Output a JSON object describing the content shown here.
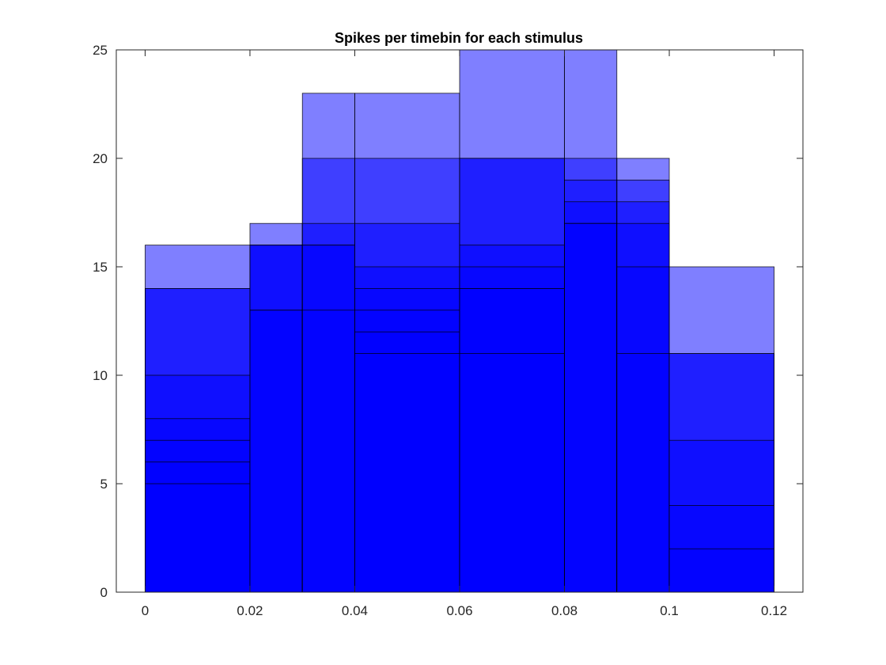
{
  "chart_data": {
    "type": "bar",
    "subtype": "overlaid-histogram",
    "title": "Spikes per timebin for each stimulus",
    "xlabel": "",
    "ylabel": "",
    "xlim": [
      -0.0055,
      0.1255
    ],
    "ylim": [
      0,
      25
    ],
    "x_ticks": [
      0,
      0.02,
      0.04,
      0.06,
      0.08,
      0.1,
      0.12
    ],
    "x_tick_labels": [
      "0",
      "0.02",
      "0.04",
      "0.06",
      "0.08",
      "0.1",
      "0.12"
    ],
    "y_ticks": [
      0,
      5,
      10,
      15,
      20,
      25
    ],
    "y_tick_labels": [
      "0",
      "5",
      "10",
      "15",
      "20",
      "25"
    ],
    "grid": false,
    "bar_color": "#0000ff",
    "bar_alpha": 0.5,
    "edge_color": "#000000",
    "bins": [
      {
        "x0": 0.0,
        "x1": 0.02,
        "values": [
          16,
          14,
          14,
          10,
          8,
          7,
          6,
          5
        ]
      },
      {
        "x0": 0.02,
        "x1": 0.03,
        "values": [
          17,
          16,
          16,
          16,
          13,
          13
        ]
      },
      {
        "x0": 0.03,
        "x1": 0.04,
        "values": [
          23,
          20,
          17,
          16,
          16,
          13
        ]
      },
      {
        "x0": 0.04,
        "x1": 0.06,
        "values": [
          23,
          20,
          17,
          15,
          14,
          13,
          12,
          11
        ]
      },
      {
        "x0": 0.06,
        "x1": 0.08,
        "values": [
          25,
          20,
          20,
          16,
          15,
          14,
          14,
          11
        ]
      },
      {
        "x0": 0.08,
        "x1": 0.09,
        "values": [
          25,
          20,
          19,
          18,
          17,
          17
        ]
      },
      {
        "x0": 0.09,
        "x1": 0.1,
        "values": [
          20,
          19,
          18,
          17,
          15,
          11
        ]
      },
      {
        "x0": 0.1,
        "x1": 0.12,
        "values": [
          15,
          11,
          11,
          7,
          4,
          2
        ]
      }
    ]
  }
}
